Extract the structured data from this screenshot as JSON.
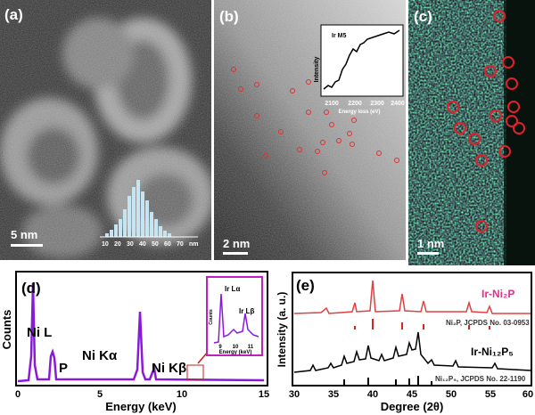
{
  "panel_a": {
    "label": "(a)",
    "scale_bar": "5 nm",
    "histogram_ticks": [
      "10",
      "20",
      "30",
      "40",
      "50",
      "60",
      "70",
      "nm"
    ]
  },
  "panel_b": {
    "label": "(b)",
    "scale_bar": "2 nm",
    "inset": {
      "title": "Ir M5",
      "ylabel": "Intensity",
      "xlabel": "Energy loss (eV)",
      "xticks": [
        "2100",
        "2200",
        "2300",
        "2400"
      ]
    }
  },
  "panel_c": {
    "label": "(c)",
    "scale_bar": "1 nm"
  },
  "panel_d": {
    "label": "(d)",
    "ylabel": "Counts",
    "xlabel": "Energy (keV)",
    "xticks": [
      "0",
      "5",
      "10",
      "15"
    ],
    "peaks": [
      "Ni L",
      "P",
      "Ni Kα",
      "Ni Kβ"
    ],
    "inset": {
      "peaks": [
        "Ir Lα",
        "Ir Lβ"
      ],
      "ylabel": "Counts",
      "xlabel": "Energy (keV)",
      "xticks": [
        "9",
        "10",
        "11"
      ]
    }
  },
  "panel_e": {
    "label": "(e)",
    "ylabel": "Intensity (a. u.)",
    "xlabel": "Degree (2θ)",
    "xticks": [
      "30",
      "35",
      "40",
      "45",
      "50",
      "55",
      "60"
    ],
    "traces": [
      "Ir-Ni₂P",
      "Ir-Ni₁₂P₅"
    ],
    "references": [
      "Ni₂P, JCPDS No. 03-0953",
      "Ni₁₂P₅, JCPDS No. 22-1190"
    ]
  }
}
